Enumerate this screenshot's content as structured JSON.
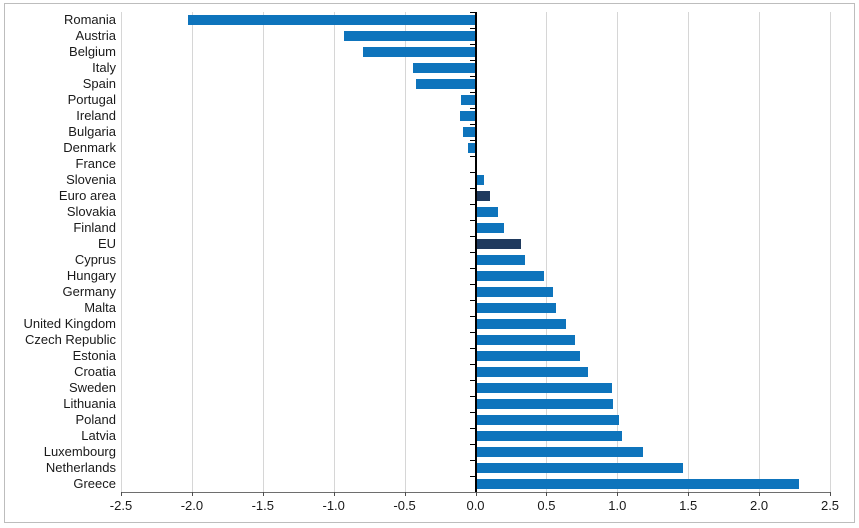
{
  "chart_data": {
    "type": "bar",
    "orientation": "horizontal",
    "title": "",
    "xlabel": "",
    "ylabel": "",
    "categories": [
      "Romania",
      "Austria",
      "Belgium",
      "Italy",
      "Spain",
      "Portugal",
      "Ireland",
      "Bulgaria",
      "Denmark",
      "France",
      "Slovenia",
      "Euro area",
      "Slovakia",
      "Finland",
      "EU",
      "Cyprus",
      "Hungary",
      "Germany",
      "Malta",
      "United Kingdom",
      "Czech Republic",
      "Estonia",
      "Croatia",
      "Sweden",
      "Lithuania",
      "Poland",
      "Latvia",
      "Luxembourg",
      "Netherlands",
      "Greece"
    ],
    "values": [
      -2.03,
      -0.93,
      -0.79,
      -0.44,
      -0.42,
      -0.1,
      -0.11,
      -0.09,
      -0.05,
      0.0,
      0.06,
      0.1,
      0.16,
      0.2,
      0.32,
      0.35,
      0.48,
      0.55,
      0.57,
      0.64,
      0.7,
      0.74,
      0.79,
      0.96,
      0.97,
      1.01,
      1.03,
      1.18,
      1.46,
      2.28
    ],
    "highlighted_categories": [
      "Euro area",
      "EU"
    ],
    "xlim": [
      -2.5,
      2.5
    ],
    "x_ticks": [
      -2.5,
      -2.0,
      -1.5,
      -1.0,
      -0.5,
      0.0,
      0.5,
      1.0,
      1.5,
      2.0,
      2.5
    ],
    "x_tick_labels": [
      "-2.5",
      "-2.0",
      "-1.5",
      "-1.0",
      "-0.5",
      "0.0",
      "0.5",
      "1.0",
      "1.5",
      "2.0",
      "2.5"
    ],
    "grid": "vertical",
    "legend": "none",
    "colors": {
      "bar": "#0e74bc",
      "highlight_bar": "#1f3a5e",
      "gridline": "#d6d6d6",
      "category_axis": "#000000",
      "value_axis": "#6e6e6e",
      "outer_border": "#bdbdbd",
      "label_text": "#1a1a1a"
    }
  }
}
